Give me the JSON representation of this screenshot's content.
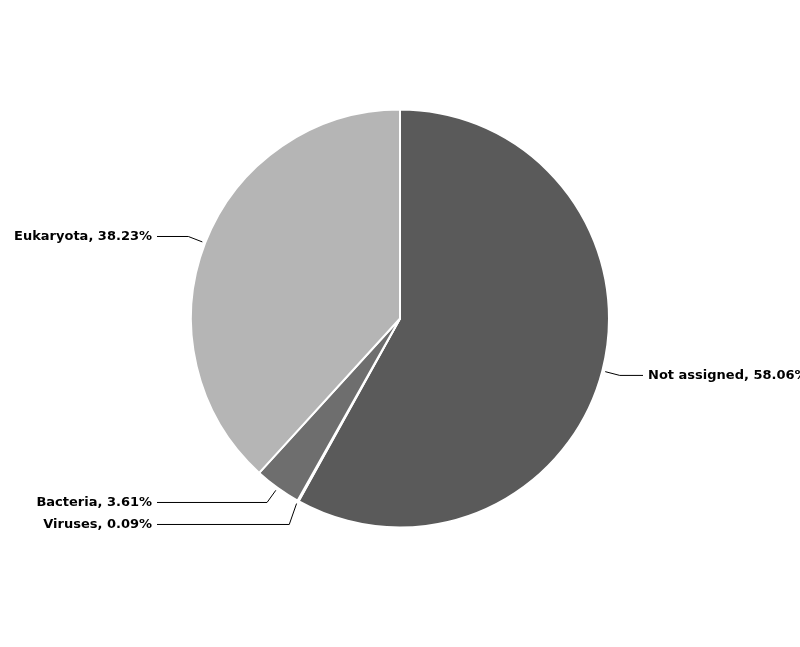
{
  "chart_data": {
    "type": "pie",
    "categories": [
      "Not assigned",
      "Viruses",
      "Bacteria",
      "Eukaryota"
    ],
    "values": [
      58.06,
      0.09,
      3.61,
      38.23
    ],
    "colors": [
      "#5a5a5a",
      "#e0e0e0",
      "#6e6e6e",
      "#b5b5b5"
    ],
    "data_labels": true,
    "value_labels": [
      "Not assigned, 58.06%",
      "Viruses, 0.09%",
      "Bacteria, 3.61%",
      "Eukaryota, 38.23%"
    ]
  }
}
